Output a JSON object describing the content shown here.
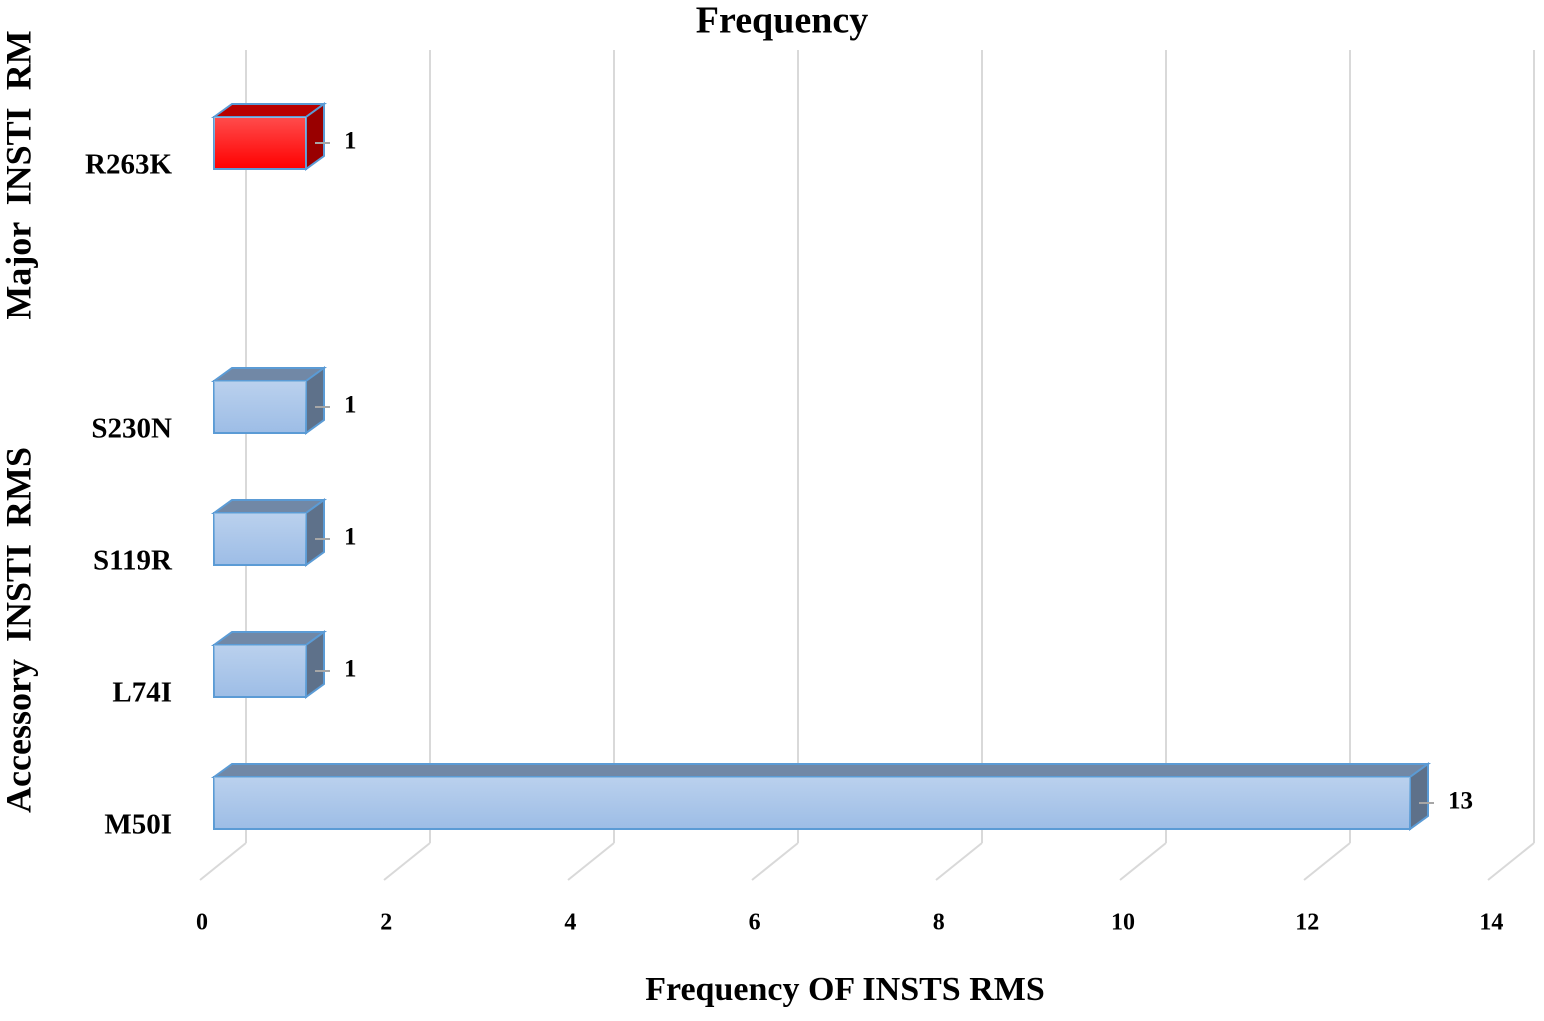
{
  "chart_data": {
    "type": "bar",
    "orientation": "horizontal",
    "three_d": true,
    "title": "Frequency",
    "x_label": "Frequency OF INSTS RMS",
    "groups": [
      {
        "name": "Major INSTI RM",
        "color": "#ff0000",
        "categories": [
          "R263K"
        ],
        "values": [
          1
        ]
      },
      {
        "name": "Accessory INSTI RMS",
        "color": "#9dbde6",
        "categories": [
          "S230N",
          "S119R",
          "L74I",
          "M50I"
        ],
        "values": [
          1,
          1,
          1,
          13
        ]
      }
    ],
    "xlim": [
      0,
      14
    ],
    "xticks": [
      0,
      2,
      4,
      6,
      8,
      10,
      12,
      14
    ],
    "grid": true
  }
}
